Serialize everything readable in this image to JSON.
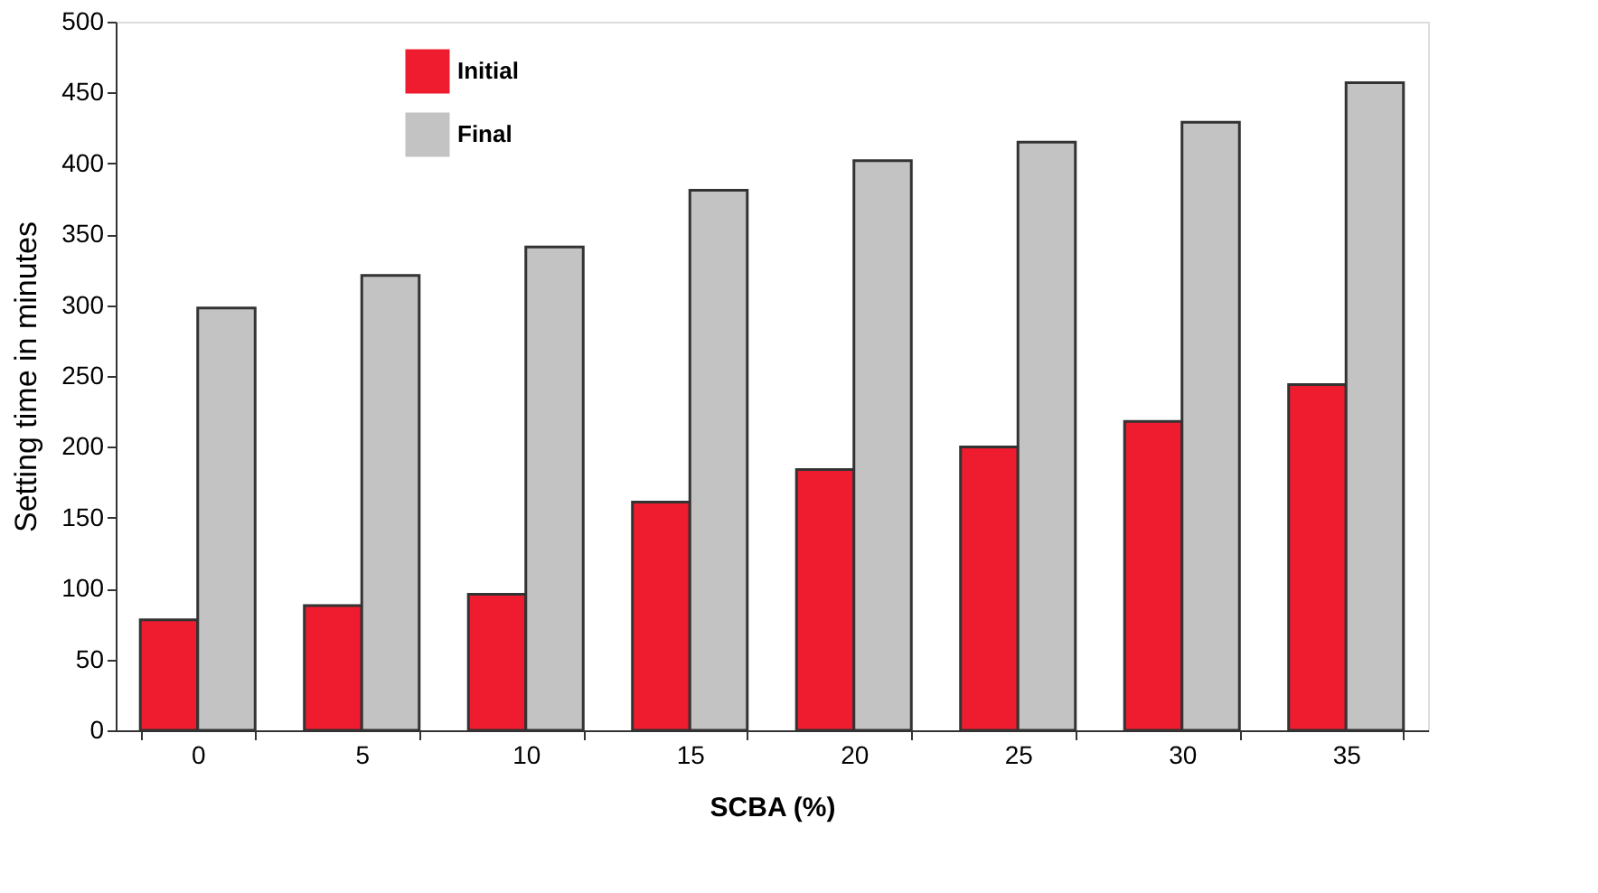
{
  "chart_data": {
    "type": "bar",
    "xlabel": "SCBA (%)",
    "ylabel": "Setting time in minutes",
    "categories": [
      "0",
      "5",
      "10",
      "15",
      "20",
      "25",
      "30",
      "35"
    ],
    "series": [
      {
        "name": "Initial",
        "color": "#ee1c2e",
        "values": [
          78,
          88,
          96,
          161,
          184,
          200,
          218,
          244
        ]
      },
      {
        "name": "Final",
        "color": "#c3c3c3",
        "values": [
          298,
          321,
          341,
          381,
          402,
          415,
          429,
          457
        ]
      }
    ],
    "ylim": [
      0,
      500
    ],
    "yticks": [
      0,
      50,
      100,
      150,
      200,
      250,
      300,
      350,
      400,
      450,
      500
    ],
    "grid": false,
    "legend": "top left"
  }
}
